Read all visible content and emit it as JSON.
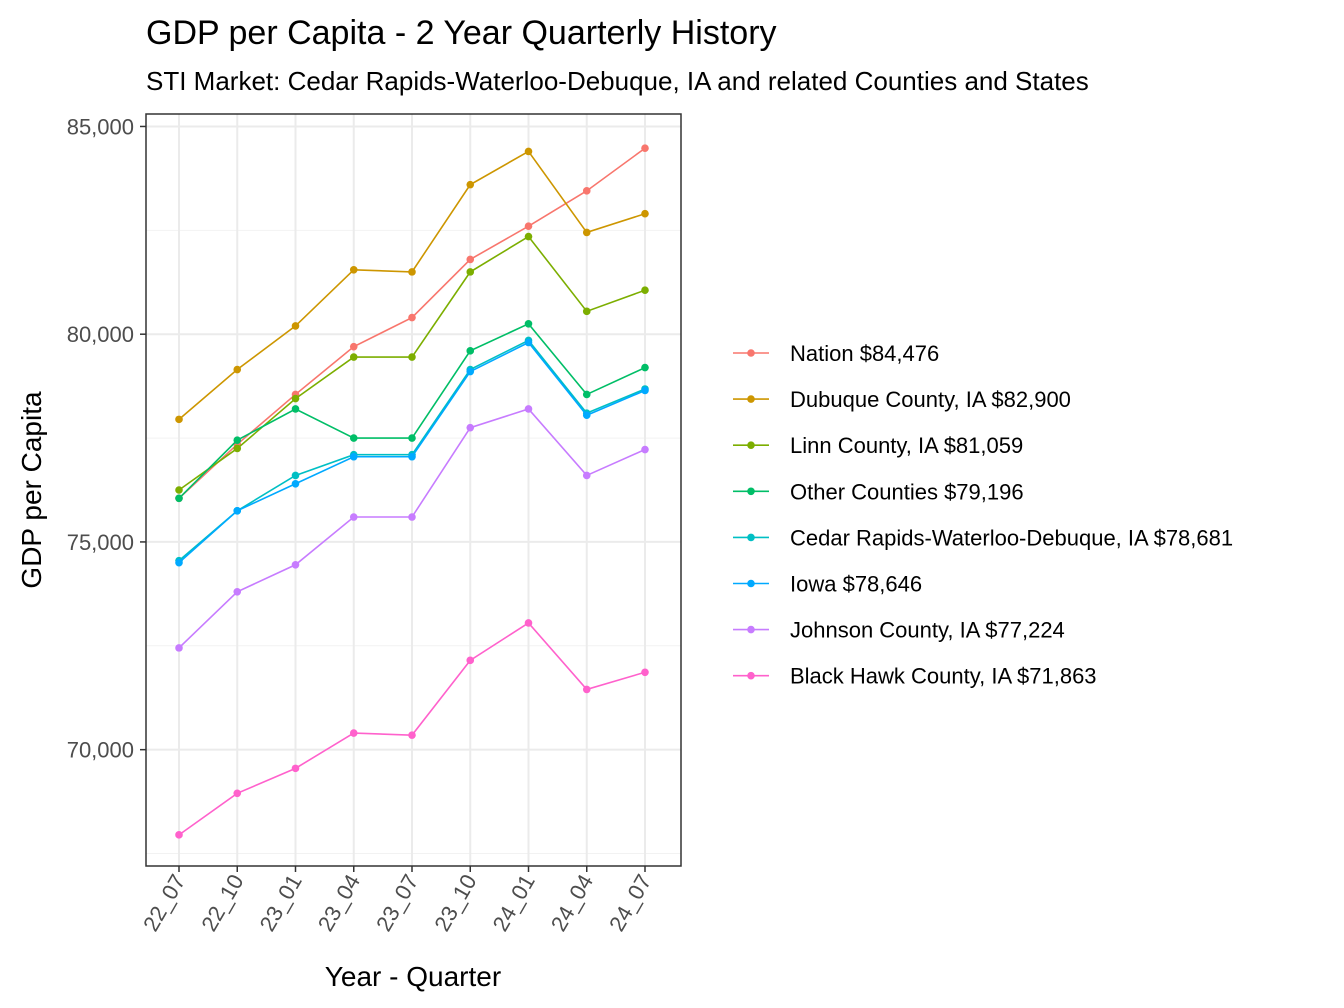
{
  "chart_data": {
    "type": "line",
    "title": "GDP per Capita - 2 Year Quarterly History",
    "subtitle": "STI Market: Cedar Rapids-Waterloo-Debuque, IA and related Counties and States",
    "xlabel": "Year - Quarter",
    "ylabel": "GDP per Capita",
    "ylim": [
      67200,
      85300
    ],
    "yticks": [
      70000,
      75000,
      80000,
      85000
    ],
    "ytick_labels": [
      "70,000",
      "75,000",
      "80,000",
      "85,000"
    ],
    "categories": [
      "22_07",
      "22_10",
      "23_01",
      "23_04",
      "23_07",
      "23_10",
      "24_01",
      "24_04",
      "24_07"
    ],
    "legend_position": "right",
    "series": [
      {
        "name": "Nation $84,476",
        "color": "#F8766D",
        "values": [
          76050,
          77350,
          78550,
          79700,
          80400,
          81800,
          82600,
          83450,
          84476
        ]
      },
      {
        "name": "Dubuque County, IA $82,900",
        "color": "#CD9600",
        "values": [
          77950,
          79150,
          80200,
          81550,
          81500,
          83600,
          84400,
          82450,
          82900
        ]
      },
      {
        "name": "Linn County, IA $81,059",
        "color": "#7CAE00",
        "values": [
          76250,
          77250,
          78450,
          79450,
          79450,
          81500,
          82350,
          80550,
          81059
        ]
      },
      {
        "name": "Other Counties $79,196",
        "color": "#00BE67",
        "values": [
          76050,
          77450,
          78200,
          77500,
          77500,
          79600,
          80250,
          78550,
          79196
        ]
      },
      {
        "name": "Cedar Rapids-Waterloo-Debuque, IA $78,681",
        "color": "#00BFC4",
        "values": [
          74550,
          75750,
          76600,
          77100,
          77100,
          79150,
          79850,
          78100,
          78681
        ]
      },
      {
        "name": "Iowa $78,646",
        "color": "#00A9FF",
        "values": [
          74500,
          75750,
          76400,
          77050,
          77050,
          79100,
          79800,
          78050,
          78646
        ]
      },
      {
        "name": "Johnson County, IA $77,224",
        "color": "#C77CFF",
        "values": [
          72450,
          73800,
          74450,
          75600,
          75600,
          77750,
          78200,
          76600,
          77224
        ]
      },
      {
        "name": "Black Hawk County, IA $71,863",
        "color": "#FF61CC",
        "values": [
          67950,
          68950,
          69550,
          70400,
          70350,
          72150,
          73050,
          71450,
          71863
        ]
      }
    ]
  }
}
